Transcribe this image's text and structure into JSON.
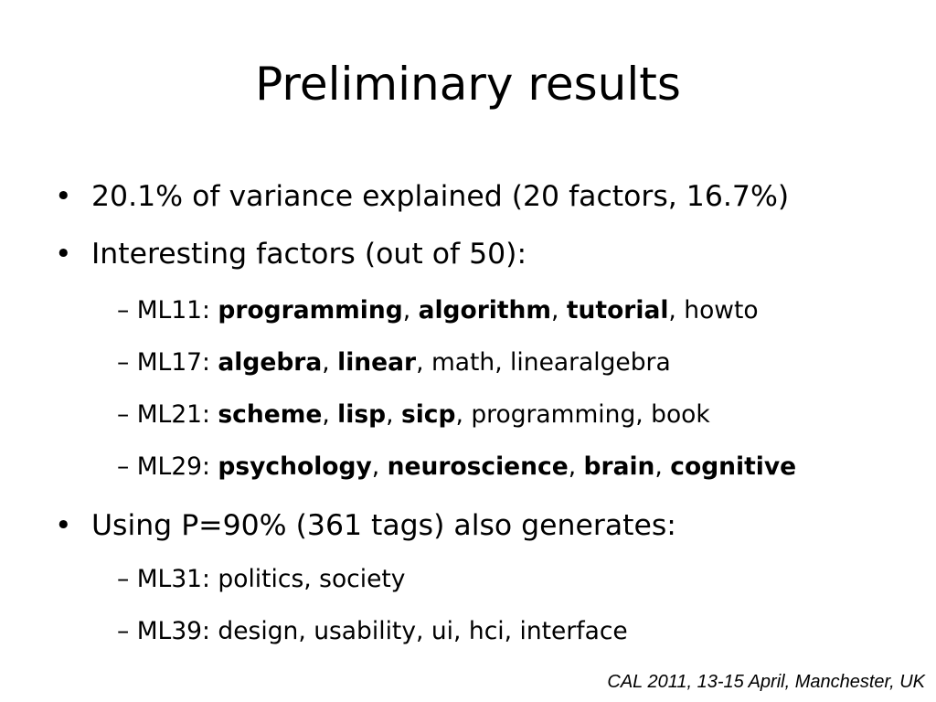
{
  "slide": {
    "title": "Preliminary results",
    "bullet_glyph": "•",
    "dash_glyph": "–",
    "bullets": [
      {
        "text": "20.1% of variance explained (20 factors, 16.7%)"
      },
      {
        "text": "Interesting factors (out of 50):",
        "subitems": [
          {
            "label": "ML11:",
            "bold_terms": [
              "programming",
              "algorithm",
              "tutorial"
            ],
            "plain_terms": [
              "howto"
            ]
          },
          {
            "label": "ML17:",
            "bold_terms": [
              "algebra",
              "linear"
            ],
            "plain_terms": [
              "math",
              "linearalgebra"
            ]
          },
          {
            "label": "ML21:",
            "bold_terms": [
              "scheme",
              "lisp",
              "sicp"
            ],
            "plain_terms": [
              "programming",
              "book"
            ]
          },
          {
            "label": "ML29:",
            "bold_terms": [
              "psychology",
              "neuroscience",
              "brain",
              "cognitive"
            ],
            "plain_terms": []
          }
        ]
      },
      {
        "text": "Using P=90% (361 tags) also generates:",
        "subitems": [
          {
            "label": "ML31:",
            "bold_terms": [],
            "plain_terms": [
              "politics",
              "society"
            ]
          },
          {
            "label": "ML39:",
            "bold_terms": [],
            "plain_terms": [
              "design",
              "usability",
              "ui",
              "hci",
              "interface"
            ]
          }
        ]
      }
    ],
    "footer": "CAL 2011, 13-15 April, Manchester, UK"
  }
}
